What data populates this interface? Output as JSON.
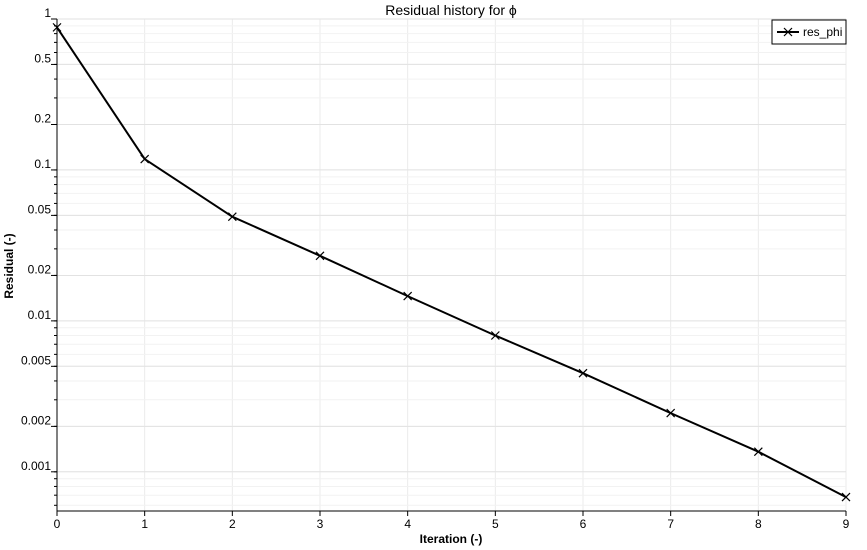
{
  "chart_data": {
    "type": "line",
    "title": "Residual history for ϕ",
    "xlabel": "Iteration (-)",
    "ylabel": "Residual (-)",
    "xscale": "linear",
    "yscale": "log",
    "xlim": [
      0,
      9
    ],
    "ylim": [
      0.00055,
      1
    ],
    "x_ticks": [
      0,
      1,
      2,
      3,
      4,
      5,
      6,
      7,
      8,
      9
    ],
    "x_tick_labels": [
      "0",
      "1",
      "2",
      "3",
      "4",
      "5",
      "6",
      "7",
      "8",
      "9"
    ],
    "y_ticks": [
      1,
      0.5,
      0.2,
      0.1,
      0.05,
      0.02,
      0.01,
      0.005,
      0.002,
      0.001
    ],
    "y_tick_labels": [
      "1",
      "0.5",
      "0.2",
      "0.1",
      "0.05",
      "0.02",
      "0.01",
      "0.005",
      "0.002",
      "0.001"
    ],
    "grid": true,
    "legend_position": "top-right",
    "series": [
      {
        "name": "res_phi",
        "color": "#000000",
        "marker": "x",
        "x": [
          0,
          1,
          2,
          3,
          4,
          5,
          6,
          7,
          8,
          9
        ],
        "values": [
          0.88,
          0.118,
          0.049,
          0.027,
          0.0146,
          0.008,
          0.0045,
          0.00245,
          0.00136,
          0.00068
        ]
      }
    ]
  }
}
